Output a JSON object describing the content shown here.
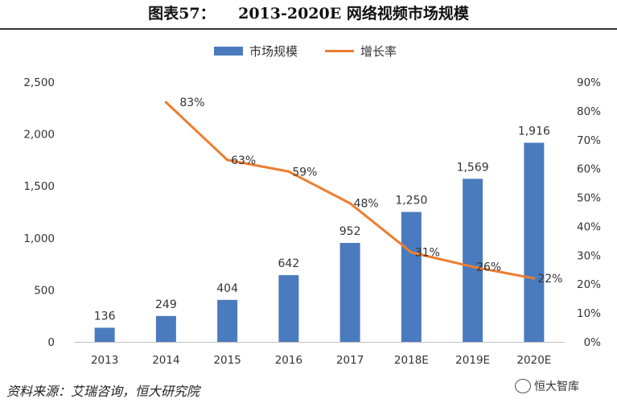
{
  "header": {
    "title": "图表57：　　2013-2020E 网络视频市场规模"
  },
  "footer": {
    "source": "资料来源：艾瑞咨询，恒大研究院",
    "watermark": "恒大智库"
  },
  "icons": {
    "watermark_icon": "wechat-icon"
  },
  "colors": {
    "bar": "#4a7bbf",
    "line": "#ed7d31",
    "axis": "#bfbfbf"
  },
  "chart_data": {
    "type": "bar",
    "title": "",
    "xlabel": "",
    "ylabel": "",
    "categories": [
      "2013",
      "2014",
      "2015",
      "2016",
      "2017",
      "2018E",
      "2019E",
      "2020E"
    ],
    "series": [
      {
        "name": "市场规模",
        "type": "bar",
        "axis": "left",
        "values": [
          136,
          249,
          404,
          642,
          952,
          1250,
          1569,
          1916
        ],
        "labels": [
          "136",
          "249",
          "404",
          "642",
          "952",
          "1,250",
          "1,569",
          "1,916"
        ]
      },
      {
        "name": "增长率",
        "type": "line",
        "axis": "right",
        "values": [
          null,
          83,
          63,
          59,
          48,
          31,
          26,
          22
        ],
        "labels": [
          null,
          "83%",
          "63%",
          "59%",
          "48%",
          "31%",
          "26%",
          "22%"
        ]
      }
    ],
    "ylim": [
      0,
      2500
    ],
    "yticks": [
      "0",
      "500",
      "1,000",
      "1,500",
      "2,000",
      "2,500"
    ],
    "y2lim": [
      0,
      90
    ],
    "y2ticks": [
      "0%",
      "10%",
      "20%",
      "30%",
      "40%",
      "50%",
      "60%",
      "70%",
      "80%",
      "90%"
    ],
    "grid": false,
    "legend_position": "top-center"
  }
}
